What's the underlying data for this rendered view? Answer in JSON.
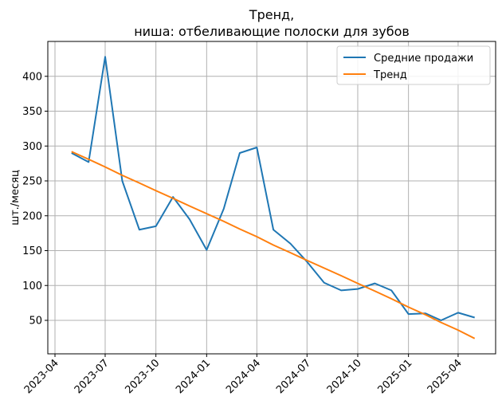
{
  "chart_data": {
    "type": "line",
    "title": "Тренд,",
    "subtitle": "ниша: отбеливающие полоски для зубов",
    "xlabel": "",
    "ylabel": "шт./месяц",
    "ylim": [
      2,
      450
    ],
    "xlim": [
      "2023-03-19",
      "2025-06-08"
    ],
    "grid": true,
    "legend_position": "top-right",
    "x_ticks": [
      "2023-04",
      "2023-07",
      "2023-10",
      "2024-01",
      "2024-04",
      "2024-07",
      "2024-10",
      "2025-01",
      "2025-04"
    ],
    "y_ticks": [
      50,
      100,
      150,
      200,
      250,
      300,
      350,
      400
    ],
    "x": [
      "2023-05-01",
      "2023-06-01",
      "2023-07-01",
      "2023-08-01",
      "2023-09-01",
      "2023-10-01",
      "2023-11-01",
      "2023-12-01",
      "2024-01-01",
      "2024-02-01",
      "2024-03-01",
      "2024-04-01",
      "2024-05-01",
      "2024-06-01",
      "2024-07-01",
      "2024-08-01",
      "2024-09-01",
      "2024-10-01",
      "2024-11-01",
      "2024-12-01",
      "2025-01-01",
      "2025-02-01",
      "2025-03-01",
      "2025-04-01",
      "2025-05-01"
    ],
    "series": [
      {
        "name": "Средние продажи",
        "color": "#1f77b4",
        "values": [
          290,
          277,
          428,
          250,
          180,
          185,
          227,
          195,
          151,
          210,
          290,
          298,
          180,
          160,
          134,
          104,
          93,
          95,
          103,
          93,
          59,
          60,
          50,
          61,
          54
        ]
      },
      {
        "name": "Тренд",
        "color": "#ff7f0e",
        "values": [
          292,
          281,
          270,
          258,
          247,
          236,
          225,
          214,
          203,
          192,
          181,
          170,
          158,
          147,
          136,
          125,
          114,
          103,
          92,
          81,
          69,
          58,
          47,
          36,
          24
        ]
      }
    ]
  }
}
